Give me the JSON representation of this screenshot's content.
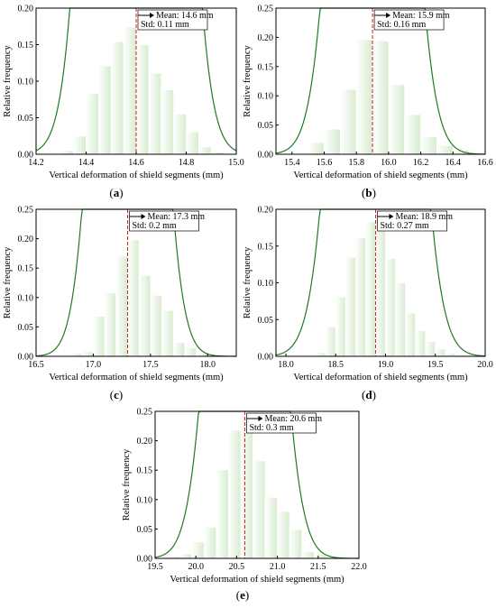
{
  "figure": {
    "xlabel": "Vertical deformation of shield segments (mm)",
    "ylabel": "Relative frequency"
  },
  "chart_data": [
    {
      "type": "bar",
      "panel": "a",
      "title": "",
      "xlabel": "Vertical deformation of shield segments (mm)",
      "ylabel": "Relative frequency",
      "xlim": [
        14.2,
        15.0
      ],
      "ylim": [
        0,
        0.2
      ],
      "xticks": [
        "14.2",
        "14.4",
        "14.6",
        "14.8",
        "15.0"
      ],
      "yticks": [
        "0.00",
        "0.05",
        "0.10",
        "0.15",
        "0.20"
      ],
      "bin_width": 0.05,
      "bin_starts": [
        14.3,
        14.35,
        14.4,
        14.45,
        14.5,
        14.55,
        14.6,
        14.65,
        14.7,
        14.75,
        14.8,
        14.85,
        14.9,
        14.95
      ],
      "values": [
        0.005,
        0.025,
        0.083,
        0.121,
        0.154,
        0.174,
        0.15,
        0.111,
        0.088,
        0.055,
        0.031,
        0.01,
        0.003,
        0.001
      ],
      "mean": 14.6,
      "std": 0.11,
      "mean_label": "Mean: 14.6 mm",
      "std_label": "Std: 0.11 mm",
      "grid": false,
      "bar_color": "#d7ecd0",
      "curve_color": "#1f7a1f",
      "mean_line_color": "#cc2222"
    },
    {
      "type": "bar",
      "panel": "b",
      "title": "",
      "xlabel": "Vertical deformation of shield segments (mm)",
      "ylabel": "Relative frequency",
      "xlim": [
        15.3,
        16.6
      ],
      "ylim": [
        0,
        0.25
      ],
      "xticks": [
        "15.4",
        "15.6",
        "15.8",
        "16.0",
        "16.2",
        "16.4",
        "16.6"
      ],
      "yticks": [
        "0.00",
        "0.05",
        "0.10",
        "0.15",
        "0.20",
        "0.25"
      ],
      "bin_width": 0.1,
      "bin_starts": [
        15.5,
        15.6,
        15.7,
        15.8,
        15.9,
        16.0,
        16.1,
        16.2,
        16.3,
        16.4
      ],
      "values": [
        0.02,
        0.043,
        0.111,
        0.196,
        0.194,
        0.119,
        0.068,
        0.03,
        0.015,
        0.007
      ],
      "mean": 15.9,
      "std": 0.16,
      "mean_label": "Mean: 15.9 mm",
      "std_label": "Std: 0.16 mm",
      "grid": false,
      "bar_color": "#d7ecd0",
      "curve_color": "#1f7a1f",
      "mean_line_color": "#cc2222"
    },
    {
      "type": "bar",
      "panel": "c",
      "title": "",
      "xlabel": "Vertical deformation of shield segments (mm)",
      "ylabel": "Relative frequency",
      "xlim": [
        16.5,
        18.25
      ],
      "ylim": [
        0,
        0.25
      ],
      "xticks": [
        "16.5",
        "17.0",
        "17.5",
        "18.0"
      ],
      "yticks": [
        "0.00",
        "0.05",
        "0.10",
        "0.15",
        "0.20",
        "0.25"
      ],
      "bin_width": 0.1,
      "bin_starts": [
        16.8,
        16.9,
        17.0,
        17.1,
        17.2,
        17.3,
        17.4,
        17.5,
        17.6,
        17.7,
        17.8,
        17.9,
        18.0
      ],
      "values": [
        0.005,
        0.008,
        0.068,
        0.108,
        0.17,
        0.198,
        0.138,
        0.104,
        0.078,
        0.023,
        0.015,
        0.005,
        0.002
      ],
      "mean": 17.3,
      "std": 0.2,
      "mean_label": "Mean: 17.3 mm",
      "std_label": "Std: 0.2 mm",
      "grid": false,
      "bar_color": "#d7ecd0",
      "curve_color": "#1f7a1f",
      "mean_line_color": "#cc2222"
    },
    {
      "type": "bar",
      "panel": "d",
      "title": "",
      "xlabel": "Vertical deformation of shield segments (mm)",
      "ylabel": "Relative frequency",
      "xlim": [
        17.9,
        20.0
      ],
      "ylim": [
        0,
        0.2
      ],
      "xticks": [
        "18.0",
        "18.5",
        "19.0",
        "19.5",
        "20.0"
      ],
      "yticks": [
        "0.00",
        "0.05",
        "0.10",
        "0.15",
        "0.20"
      ],
      "bin_width": 0.1,
      "bin_starts": [
        18.3,
        18.4,
        18.5,
        18.6,
        18.7,
        18.8,
        18.9,
        19.0,
        19.1,
        19.2,
        19.3,
        19.4,
        19.5,
        19.6,
        19.7
      ],
      "values": [
        0.005,
        0.04,
        0.081,
        0.135,
        0.161,
        0.183,
        0.186,
        0.133,
        0.1,
        0.059,
        0.035,
        0.02,
        0.01,
        0.004,
        0.002
      ],
      "mean": 18.9,
      "std": 0.27,
      "mean_label": "Mean: 18.9 mm",
      "std_label": "Std: 0.27 mm",
      "grid": false,
      "bar_color": "#d7ecd0",
      "curve_color": "#1f7a1f",
      "mean_line_color": "#cc2222"
    },
    {
      "type": "bar",
      "panel": "e",
      "title": "",
      "xlabel": "Vertical deformation of shield segments (mm)",
      "ylabel": "Relative frequency",
      "xlim": [
        19.5,
        22.0
      ],
      "ylim": [
        0,
        0.25
      ],
      "xticks": [
        "19.5",
        "20.0",
        "20.5",
        "21.0",
        "21.5",
        "22.0"
      ],
      "yticks": [
        "0.00",
        "0.05",
        "0.10",
        "0.15",
        "0.20",
        "0.25"
      ],
      "bin_width": 0.15,
      "bin_starts": [
        19.65,
        19.8,
        19.95,
        20.1,
        20.25,
        20.4,
        20.55,
        20.7,
        20.85,
        21.0,
        21.15,
        21.3,
        21.45
      ],
      "values": [
        0.003,
        0.008,
        0.028,
        0.053,
        0.151,
        0.218,
        0.24,
        0.166,
        0.104,
        0.08,
        0.049,
        0.011,
        0.007
      ],
      "mean": 20.6,
      "std": 0.3,
      "mean_label": "Mean: 20.6 mm",
      "std_label": "Std: 0.3 mm",
      "grid": false,
      "bar_color": "#d7ecd0",
      "curve_color": "#1f7a1f",
      "mean_line_color": "#cc2222"
    }
  ]
}
